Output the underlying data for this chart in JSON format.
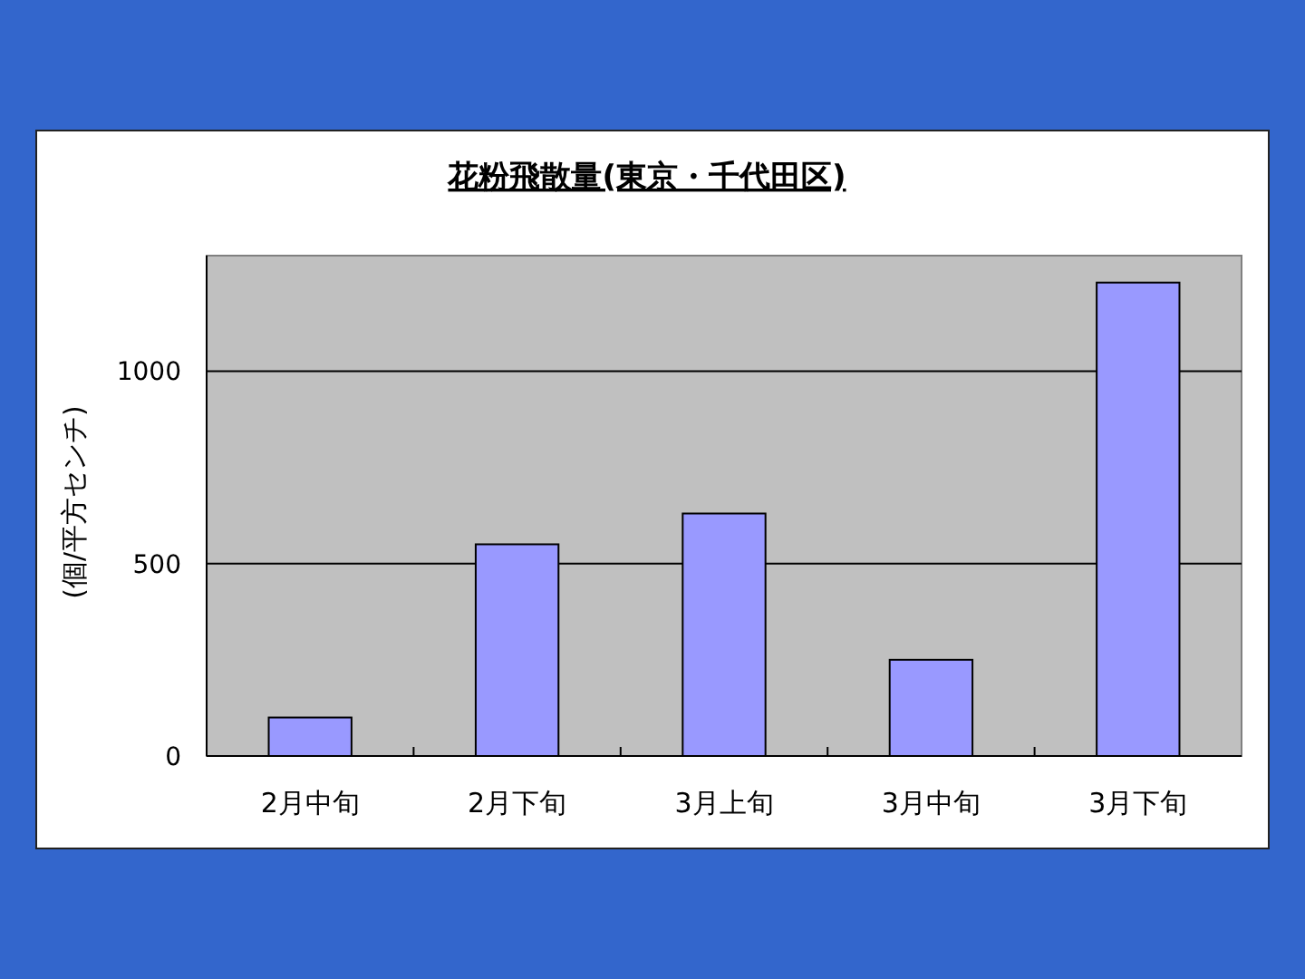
{
  "chart_data": {
    "type": "bar",
    "title": "花粉飛散量(東京・千代田区)",
    "ylabel": "(個/平方センチ)",
    "categories": [
      "2月中旬",
      "2月下旬",
      "3月上旬",
      "3月中旬",
      "3月下旬"
    ],
    "values": [
      100,
      550,
      630,
      250,
      1230
    ],
    "color": "#9999ff",
    "ylim": [
      0,
      1300
    ],
    "yticks": [
      0,
      500,
      1000
    ],
    "grid": "y"
  }
}
